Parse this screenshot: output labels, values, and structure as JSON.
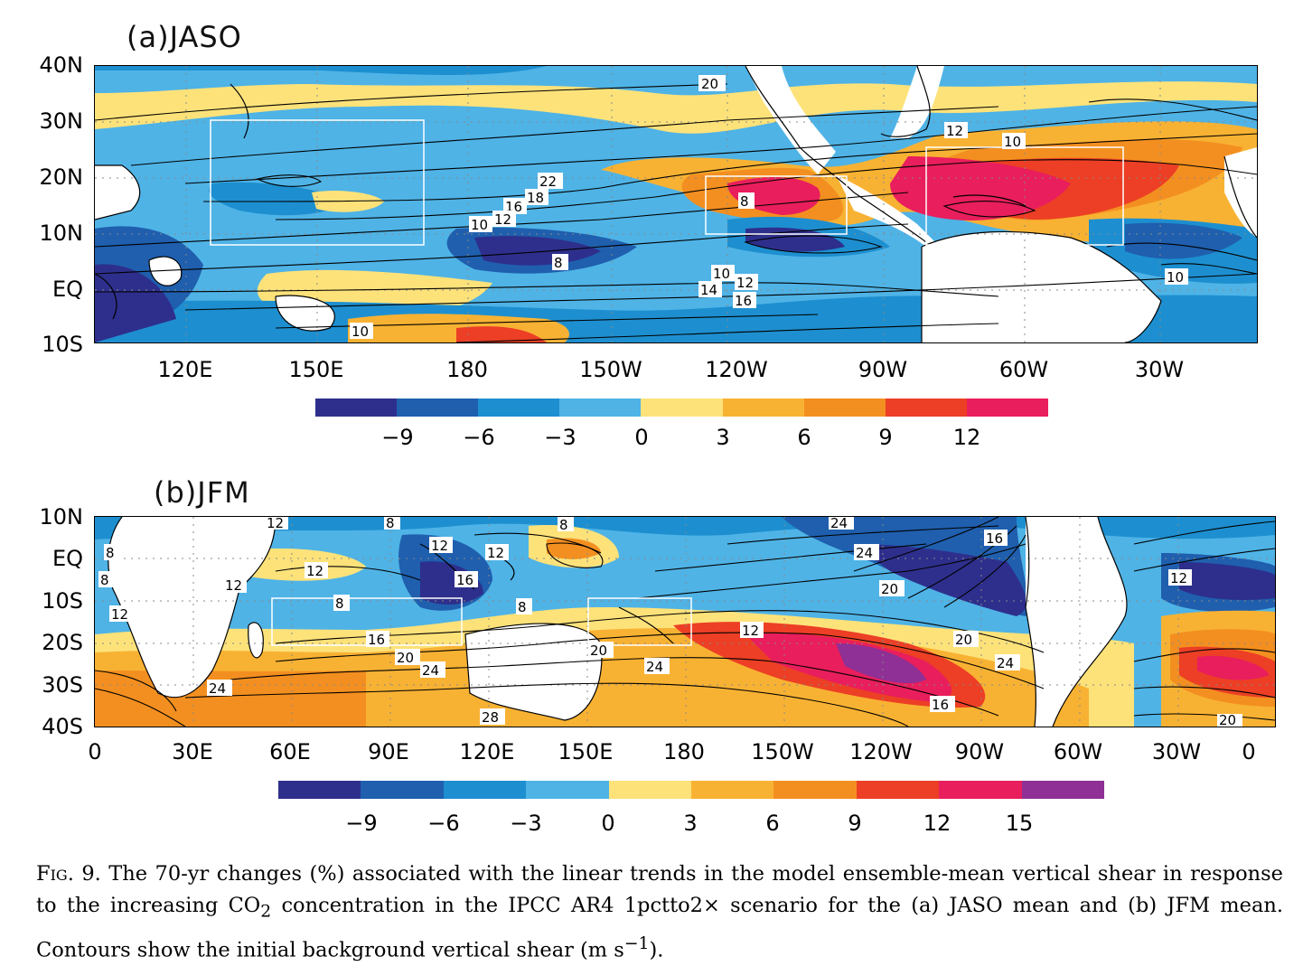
{
  "panel_a": {
    "title": "(a)JASO",
    "y_ticks": [
      "40N",
      "30N",
      "20N",
      "10N",
      "EQ",
      "10S"
    ],
    "x_ticks": [
      "120E",
      "150E",
      "180",
      "150W",
      "120W",
      "90W",
      "60W",
      "30W"
    ],
    "contour_labels": [
      "20",
      "22",
      "16",
      "18",
      "10",
      "12",
      "8",
      "10",
      "12",
      "14",
      "16",
      "8",
      "12",
      "10",
      "10",
      "10"
    ],
    "colorbar": {
      "labels": [
        "−9",
        "−6",
        "−3",
        "0",
        "3",
        "6",
        "9",
        "12"
      ],
      "colors": [
        "#2e2f8c",
        "#1f5fae",
        "#1d8fd0",
        "#4fb3e6",
        "#fde27a",
        "#f8b233",
        "#f38f20",
        "#ec3f25",
        "#e91e5d"
      ]
    }
  },
  "panel_b": {
    "title": "(b)JFM",
    "y_ticks": [
      "10N",
      "EQ",
      "10S",
      "20S",
      "30S",
      "40S"
    ],
    "x_ticks": [
      "0",
      "30E",
      "60E",
      "90E",
      "120E",
      "150E",
      "180",
      "150W",
      "120W",
      "90W",
      "60W",
      "30W",
      "0"
    ],
    "contour_labels": [
      "12",
      "8",
      "8",
      "24",
      "8",
      "12",
      "12",
      "12",
      "12",
      "24",
      "16",
      "8",
      "16",
      "20",
      "12",
      "12",
      "8",
      "8",
      "16",
      "20",
      "12",
      "24",
      "20",
      "24",
      "16",
      "20",
      "24",
      "28",
      "20",
      "24"
    ],
    "colorbar": {
      "labels": [
        "−9",
        "−6",
        "−3",
        "0",
        "3",
        "6",
        "9",
        "12",
        "15"
      ],
      "colors": [
        "#2e2f8c",
        "#1f5fae",
        "#1d8fd0",
        "#4fb3e6",
        "#fde27a",
        "#f8b233",
        "#f38f20",
        "#ec3f25",
        "#e91e5d",
        "#8e3096"
      ]
    }
  },
  "caption": {
    "fig_label": "Fig. 9.",
    "text_1": " The 70-yr changes (%) associated with the linear trends in the model ensemble-mean vertical shear in response to the increasing CO",
    "sub_2": "2",
    "text_2": " concentration in the IPCC AR4 1pctto2× scenario for the (a) JASO mean and (b) JFM mean. Contours show the initial background vertical shear (m s",
    "sup": "−1",
    "text_3": ")."
  }
}
